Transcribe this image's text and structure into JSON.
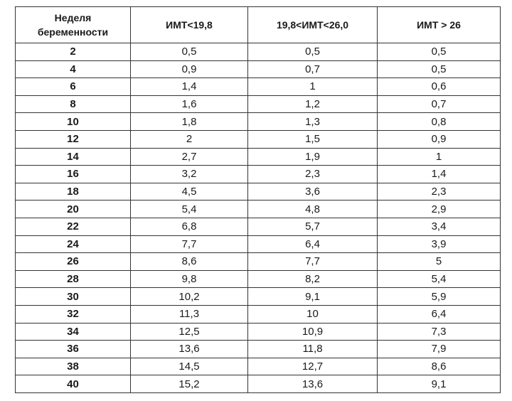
{
  "table": {
    "headers": [
      "Неделя беременности",
      "ИМТ<19,8",
      "19,8<ИМТ<26,0",
      "ИМТ > 26"
    ],
    "header_lines": [
      "Неделя",
      "беременности"
    ],
    "rows": [
      [
        "2",
        "0,5",
        "0,5",
        "0,5"
      ],
      [
        "4",
        "0,9",
        "0,7",
        "0,5"
      ],
      [
        "6",
        "1,4",
        "1",
        "0,6"
      ],
      [
        "8",
        "1,6",
        "1,2",
        "0,7"
      ],
      [
        "10",
        "1,8",
        "1,3",
        "0,8"
      ],
      [
        "12",
        "2",
        "1,5",
        "0,9"
      ],
      [
        "14",
        "2,7",
        "1,9",
        "1"
      ],
      [
        "16",
        "3,2",
        "2,3",
        "1,4"
      ],
      [
        "18",
        "4,5",
        "3,6",
        "2,3"
      ],
      [
        "20",
        "5,4",
        "4,8",
        "2,9"
      ],
      [
        "22",
        "6,8",
        "5,7",
        "3,4"
      ],
      [
        "24",
        "7,7",
        "6,4",
        "3,9"
      ],
      [
        "26",
        "8,6",
        "7,7",
        "5"
      ],
      [
        "28",
        "9,8",
        "8,2",
        "5,4"
      ],
      [
        "30",
        "10,2",
        "9,1",
        "5,9"
      ],
      [
        "32",
        "11,3",
        "10",
        "6,4"
      ],
      [
        "34",
        "12,5",
        "10,9",
        "7,3"
      ],
      [
        "36",
        "13,6",
        "11,8",
        "7,9"
      ],
      [
        "38",
        "14,5",
        "12,7",
        "8,6"
      ],
      [
        "40",
        "15,2",
        "13,6",
        "9,1"
      ]
    ]
  }
}
